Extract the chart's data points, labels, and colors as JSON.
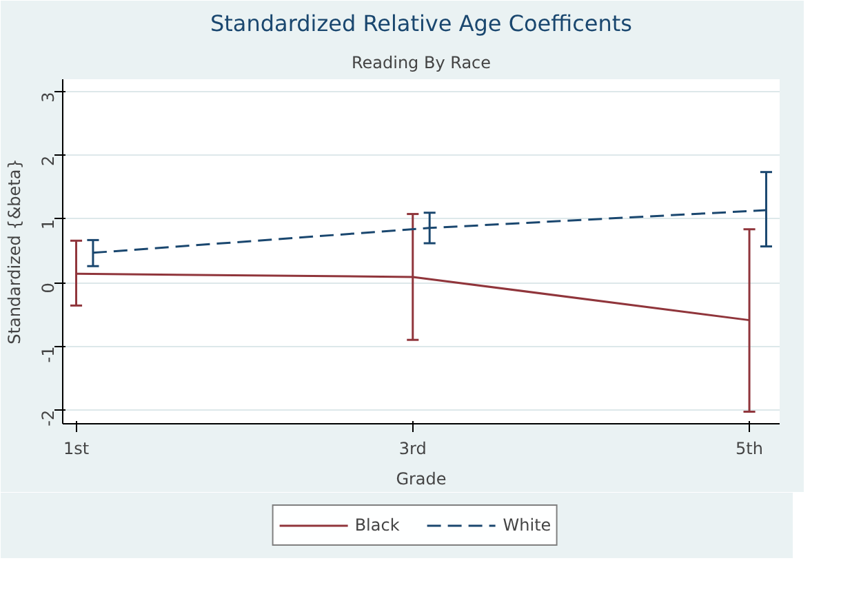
{
  "chart_data": {
    "type": "line",
    "title": "Standardized Relative Age Coefficents",
    "subtitle": "Reading By Race",
    "xlabel": "Grade",
    "ylabel": "Standardized {&beta}",
    "xlim": [
      0.92,
      5.18
    ],
    "xticks": [
      {
        "value": 1,
        "label": "1st"
      },
      {
        "value": 3,
        "label": "3rd"
      },
      {
        "value": 5,
        "label": "5th"
      }
    ],
    "ylim": [
      -2.22,
      3.2
    ],
    "yticks": [
      -2,
      -1,
      0,
      1,
      2,
      3
    ],
    "grid": "y",
    "legend": "bottom",
    "marker": "none",
    "series": [
      {
        "name": "Black",
        "color": "#90353b",
        "line_style": "solid",
        "x": [
          1,
          3,
          5
        ],
        "values": [
          0.14,
          0.09,
          -0.59
        ],
        "errors": [
          [
            -0.36,
            0.66
          ],
          [
            -0.9,
            1.08
          ],
          [
            -2.03,
            0.84
          ]
        ]
      },
      {
        "name": "White",
        "color": "#1a476f",
        "line_style": "dashed",
        "x": [
          1.1,
          3.1,
          5.1
        ],
        "values": [
          0.47,
          0.86,
          1.14
        ],
        "errors": [
          [
            0.26,
            0.67
          ],
          [
            0.62,
            1.1
          ],
          [
            0.57,
            1.74
          ]
        ]
      }
    ]
  }
}
